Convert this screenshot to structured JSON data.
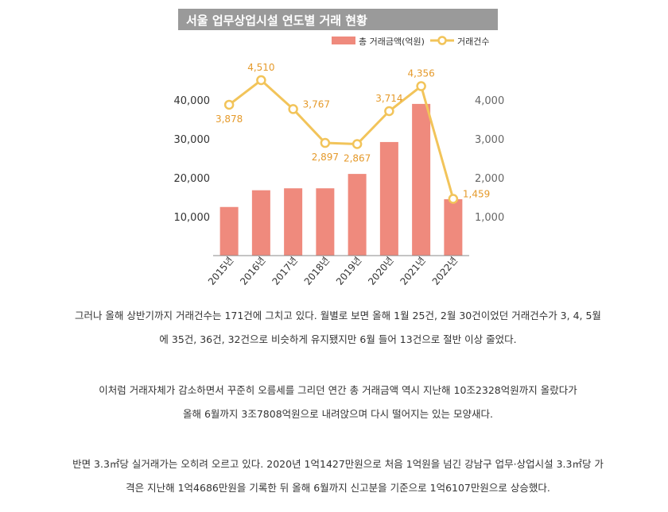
{
  "chart_data": {
    "type": "bar+line",
    "title": "서울 업무상업시설 연도별 거래 현황",
    "categories": [
      "2015년",
      "2016년",
      "2017년",
      "2018년",
      "2019년",
      "2020년",
      "2021년",
      "2022년"
    ],
    "series": [
      {
        "name": "총 거래금액(억원)",
        "type": "bar",
        "axis": "left",
        "color": "#ef8a7d",
        "values": [
          12500,
          16800,
          17300,
          17300,
          21000,
          29200,
          39000,
          14500
        ]
      },
      {
        "name": "거래건수",
        "type": "line",
        "axis": "right",
        "color": "#f2c45a",
        "labelColor": "#e59a2b",
        "values": [
          3878,
          4510,
          3767,
          2897,
          2867,
          3714,
          4356,
          1459
        ],
        "labels": [
          "3,878",
          "4,510",
          "3,767",
          "2,897",
          "2,867",
          "3,714",
          "4,356",
          "1,459"
        ]
      }
    ],
    "y_left": {
      "ticks": [
        10000,
        20000,
        30000,
        40000
      ],
      "tick_labels": [
        "10,000",
        "20,000",
        "30,000",
        "40,000"
      ],
      "range": [
        0,
        41000
      ]
    },
    "y_right": {
      "ticks": [
        1000,
        2000,
        3000,
        4000
      ],
      "tick_labels": [
        "1,000",
        "2,000",
        "3,000",
        "4,000"
      ],
      "range": [
        0,
        4100
      ]
    },
    "legend": "top-right",
    "grid": false
  },
  "paragraphs": [
    {
      "lines": [
        "그러나 올해 상반기까지 거래건수는 171건에 그치고 있다. 월별로 보면 올해 1월 25건, 2월 30건이었던 거래건수가 3, 4, 5월",
        "에 35건, 36건, 32건으로 비슷하게 유지됐지만 6월 들어 13건으로 절반 이상 줄었다."
      ]
    },
    {
      "lines": [
        "이처럼 거래자체가 감소하면서 꾸준히 오름세를 그리던 연간 총 거래금액 역시 지난해 10조2328억원까지 올랐다가",
        "올해 6월까지 3조7808억원으로 내려앉으며 다시 떨어지는 있는 모양새다."
      ]
    },
    {
      "lines": [
        "반면 3.3㎡당 실거래가는 오히려 오르고 있다. 2020년 1억1427만원으로 처음 1억원을 넘긴 강남구 업무·상업시설 3.3㎡당 가",
        "격은 지난해 1억4686만원을 기록한 뒤 올해 6월까지 신고분을 기준으로 1억6107만원으로 상승했다."
      ]
    }
  ]
}
